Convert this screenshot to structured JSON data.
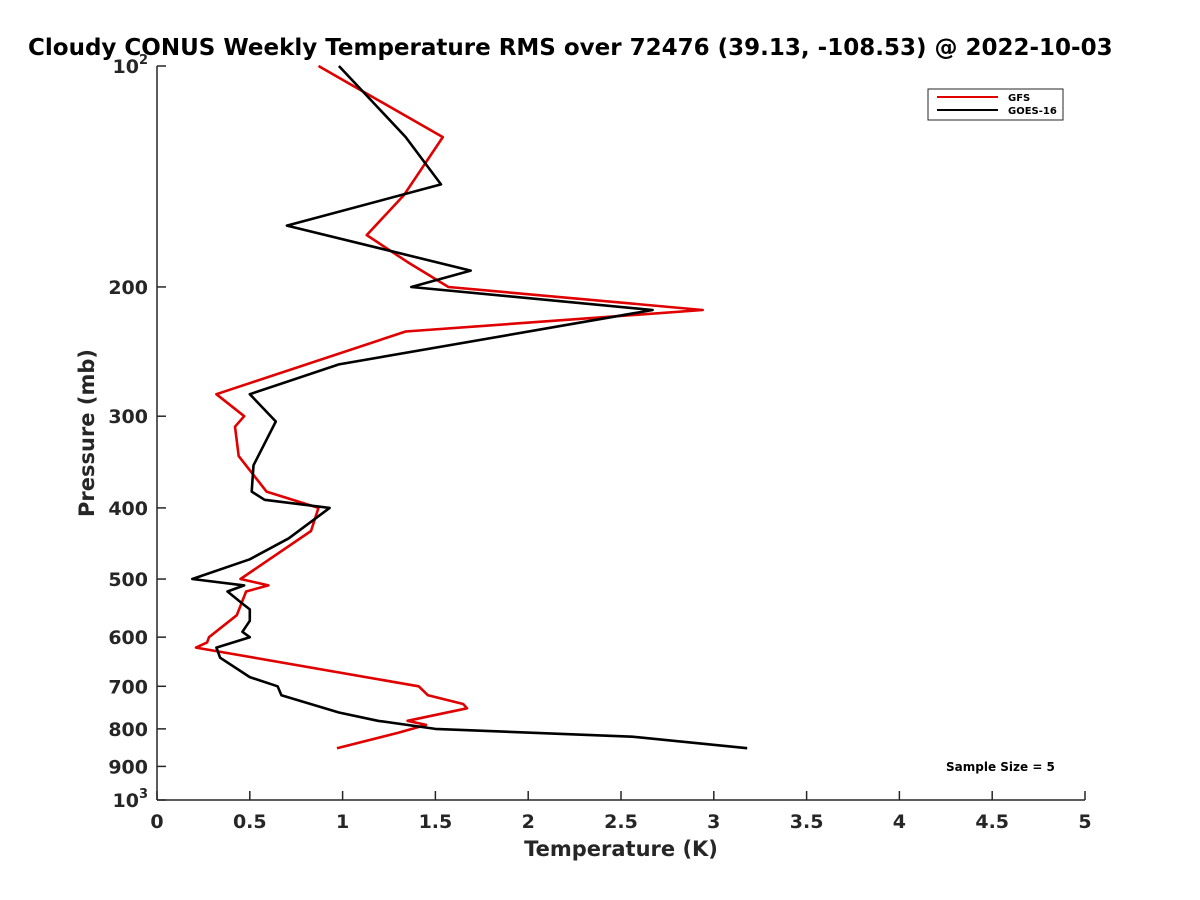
{
  "chart_data": {
    "type": "line",
    "title": "Cloudy CONUS Weekly Temperature RMS over 72476 (39.13, -108.53) @ 2022-10-03",
    "xlabel": "Temperature (K)",
    "ylabel": "Pressure (mb)",
    "xlim": [
      0,
      5
    ],
    "ylim": [
      100,
      1000
    ],
    "y_scale": "log",
    "y_reversed": true,
    "grid": false,
    "legend_position": "top-right",
    "x_ticks": [
      "0",
      "0.5",
      "1",
      "1.5",
      "2",
      "2.5",
      "3",
      "3.5",
      "4",
      "4.5",
      "5"
    ],
    "y_ticks": [
      {
        "value": 100,
        "base": "10",
        "exp": "2"
      },
      {
        "value": 200,
        "label": "200"
      },
      {
        "value": 300,
        "label": "300"
      },
      {
        "value": 400,
        "label": "400"
      },
      {
        "value": 500,
        "label": "500"
      },
      {
        "value": 600,
        "label": "600"
      },
      {
        "value": 700,
        "label": "700"
      },
      {
        "value": 800,
        "label": "800"
      },
      {
        "value": 900,
        "label": "900"
      },
      {
        "value": 1000,
        "base": "10",
        "exp": "3"
      }
    ],
    "series": [
      {
        "name": "GFS",
        "color": "#e00000",
        "points": [
          [
            0.87,
            100
          ],
          [
            1.54,
            125
          ],
          [
            1.33,
            150
          ],
          [
            1.13,
            170
          ],
          [
            1.35,
            185
          ],
          [
            1.47,
            193
          ],
          [
            1.57,
            200
          ],
          [
            2.94,
            215
          ],
          [
            1.34,
            230
          ],
          [
            0.32,
            280
          ],
          [
            0.47,
            300
          ],
          [
            0.42,
            310
          ],
          [
            0.44,
            340
          ],
          [
            0.59,
            380
          ],
          [
            0.87,
            400
          ],
          [
            0.83,
            430
          ],
          [
            0.45,
            500
          ],
          [
            0.6,
            510
          ],
          [
            0.48,
            520
          ],
          [
            0.43,
            560
          ],
          [
            0.28,
            600
          ],
          [
            0.27,
            610
          ],
          [
            0.21,
            620
          ],
          [
            1.41,
            700
          ],
          [
            1.46,
            720
          ],
          [
            1.65,
            740
          ],
          [
            1.67,
            750
          ],
          [
            1.35,
            780
          ],
          [
            1.45,
            790
          ],
          [
            1.3,
            810
          ],
          [
            0.97,
            850
          ]
        ]
      },
      {
        "name": "GOES-16",
        "color": "#000000",
        "points": [
          [
            0.98,
            100
          ],
          [
            1.34,
            125
          ],
          [
            1.53,
            145
          ],
          [
            0.7,
            165
          ],
          [
            1.69,
            190
          ],
          [
            1.37,
            200
          ],
          [
            2.67,
            215
          ],
          [
            0.98,
            255
          ],
          [
            0.5,
            280
          ],
          [
            0.64,
            305
          ],
          [
            0.52,
            350
          ],
          [
            0.51,
            380
          ],
          [
            0.58,
            390
          ],
          [
            0.93,
            400
          ],
          [
            0.71,
            440
          ],
          [
            0.5,
            470
          ],
          [
            0.19,
            500
          ],
          [
            0.47,
            510
          ],
          [
            0.38,
            520
          ],
          [
            0.46,
            540
          ],
          [
            0.5,
            550
          ],
          [
            0.5,
            570
          ],
          [
            0.46,
            590
          ],
          [
            0.5,
            600
          ],
          [
            0.32,
            620
          ],
          [
            0.34,
            640
          ],
          [
            0.5,
            680
          ],
          [
            0.65,
            700
          ],
          [
            0.67,
            720
          ],
          [
            0.98,
            760
          ],
          [
            1.19,
            780
          ],
          [
            1.5,
            800
          ],
          [
            2.56,
            820
          ],
          [
            3.18,
            850
          ]
        ]
      }
    ],
    "annotations": [
      {
        "text": "Sample Size = 5",
        "position": "bottom-right"
      }
    ]
  }
}
